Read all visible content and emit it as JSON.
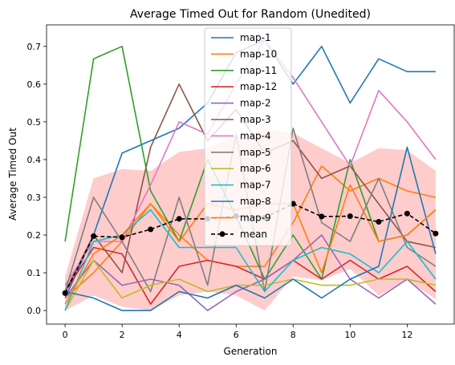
{
  "chart_data": {
    "type": "line",
    "title": "Average Timed Out for Random (Unedited)",
    "xlabel": "Generation",
    "ylabel": "Average Timed Out",
    "xlim": [
      -0.65,
      13.65
    ],
    "ylim": [
      -0.036,
      0.757
    ],
    "x_ticks": [
      0,
      2,
      4,
      6,
      8,
      10,
      12
    ],
    "y_ticks": [
      0.0,
      0.1,
      0.2,
      0.3,
      0.4,
      0.5,
      0.6,
      0.7
    ],
    "y_tick_labels": [
      "0.0",
      "0.1",
      "0.2",
      "0.3",
      "0.4",
      "0.5",
      "0.6",
      "0.7"
    ],
    "grid": false,
    "legend_position": "upper-center",
    "x": [
      0,
      1,
      2,
      3,
      4,
      5,
      6,
      7,
      8,
      9,
      10,
      11,
      12,
      13
    ],
    "series": [
      {
        "name": "map-1",
        "color": "#1f77b4",
        "values": [
          0.033,
          0.2,
          0.417,
          0.45,
          0.483,
          0.55,
          0.683,
          0.717,
          0.6,
          0.7,
          0.55,
          0.667,
          0.633,
          0.633
        ]
      },
      {
        "name": "map-10",
        "color": "#ff7f0e",
        "values": [
          0.033,
          0.1,
          0.183,
          0.283,
          0.2,
          0.133,
          0.117,
          0.117,
          0.233,
          0.383,
          0.317,
          0.35,
          0.317,
          0.3
        ]
      },
      {
        "name": "map-11",
        "color": "#2ca02c",
        "values": [
          0.183,
          0.667,
          0.7,
          0.317,
          0.183,
          0.4,
          0.25,
          0.083,
          0.2,
          0.083,
          0.4,
          0.183,
          0.2,
          0.267
        ]
      },
      {
        "name": "map-12",
        "color": "#d62728",
        "values": [
          0.05,
          0.167,
          0.15,
          0.017,
          0.117,
          0.133,
          0.117,
          0.083,
          0.133,
          0.083,
          0.133,
          0.083,
          0.117,
          0.05
        ]
      },
      {
        "name": "map-2",
        "color": "#9467bd",
        "values": [
          0.033,
          0.133,
          0.067,
          0.083,
          0.067,
          0.0,
          0.05,
          0.083,
          0.133,
          0.2,
          0.083,
          0.033,
          0.083,
          0.017
        ]
      },
      {
        "name": "map-3",
        "color": "#8c564b",
        "values": [
          0.05,
          0.2,
          0.1,
          0.433,
          0.6,
          0.45,
          0.533,
          0.417,
          0.45,
          0.35,
          0.383,
          0.283,
          0.183,
          0.167
        ]
      },
      {
        "name": "map-4",
        "color": "#e377c2",
        "values": [
          0.067,
          0.183,
          0.183,
          0.333,
          0.5,
          0.467,
          0.6,
          0.717,
          0.617,
          0.5,
          0.383,
          0.583,
          0.5,
          0.4
        ]
      },
      {
        "name": "map-5",
        "color": "#7f7f7f",
        "values": [
          0.05,
          0.3,
          0.183,
          0.05,
          0.3,
          0.067,
          0.467,
          0.05,
          0.483,
          0.233,
          0.183,
          0.35,
          0.167,
          0.117
        ]
      },
      {
        "name": "map-6",
        "color": "#bcbd22",
        "values": [
          0.0,
          0.133,
          0.033,
          0.067,
          0.083,
          0.05,
          0.067,
          0.067,
          0.083,
          0.067,
          0.067,
          0.083,
          0.083,
          0.067
        ]
      },
      {
        "name": "map-7",
        "color": "#17becf",
        "values": [
          0.0,
          0.183,
          0.2,
          0.267,
          0.167,
          0.167,
          0.167,
          0.05,
          0.133,
          0.167,
          0.15,
          0.1,
          0.183,
          0.083
        ]
      },
      {
        "name": "map-8",
        "color": "#1f77b4",
        "values": [
          0.05,
          0.033,
          0.0,
          0.0,
          0.05,
          0.033,
          0.067,
          0.033,
          0.083,
          0.033,
          0.083,
          0.117,
          0.433,
          0.15
        ]
      },
      {
        "name": "map-9",
        "color": "#ff7f0e",
        "values": [
          0.017,
          0.15,
          0.2,
          0.283,
          0.183,
          0.283,
          0.267,
          0.283,
          0.283,
          0.1,
          0.333,
          0.183,
          0.2,
          0.267
        ]
      }
    ],
    "mean": {
      "name": "mean",
      "color": "#000000",
      "values": [
        0.046,
        0.197,
        0.194,
        0.215,
        0.243,
        0.243,
        0.25,
        0.246,
        0.283,
        0.249,
        0.25,
        0.235,
        0.257,
        0.204
      ]
    },
    "band": {
      "color": "#ff9999",
      "lower": [
        0.0,
        0.04,
        0.01,
        0.0,
        0.04,
        0.05,
        0.04,
        0.0,
        0.09,
        0.08,
        0.11,
        0.04,
        0.08,
        0.03
      ],
      "upper": [
        0.09,
        0.35,
        0.375,
        0.37,
        0.42,
        0.43,
        0.46,
        0.48,
        0.47,
        0.43,
        0.39,
        0.43,
        0.425,
        0.37
      ]
    }
  }
}
